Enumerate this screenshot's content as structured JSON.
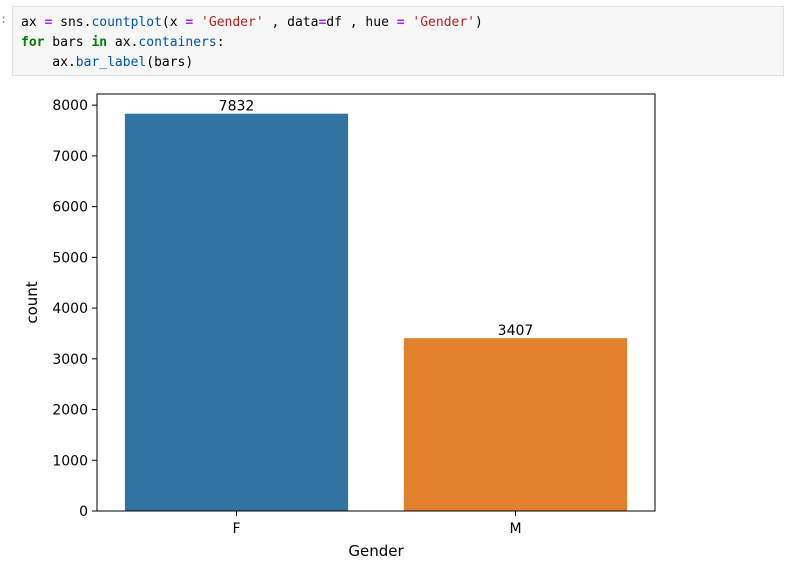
{
  "cell": {
    "prompt": ":",
    "code_lines": [
      [
        {
          "t": "plain",
          "v": "ax "
        },
        {
          "t": "op",
          "v": "="
        },
        {
          "t": "plain",
          "v": " sns."
        },
        {
          "t": "attr",
          "v": "countplot"
        },
        {
          "t": "plain",
          "v": "(x "
        },
        {
          "t": "op",
          "v": "="
        },
        {
          "t": "plain",
          "v": " "
        },
        {
          "t": "str",
          "v": "'Gender'"
        },
        {
          "t": "plain",
          "v": " , data"
        },
        {
          "t": "op",
          "v": "="
        },
        {
          "t": "plain",
          "v": "df , hue "
        },
        {
          "t": "op",
          "v": "="
        },
        {
          "t": "plain",
          "v": " "
        },
        {
          "t": "str",
          "v": "'Gender'"
        },
        {
          "t": "plain",
          "v": ")"
        }
      ],
      [
        {
          "t": "kw",
          "v": "for"
        },
        {
          "t": "plain",
          "v": " bars "
        },
        {
          "t": "kw",
          "v": "in"
        },
        {
          "t": "plain",
          "v": " ax."
        },
        {
          "t": "attr",
          "v": "containers"
        },
        {
          "t": "plain",
          "v": ":"
        }
      ],
      [
        {
          "t": "plain",
          "v": "    ax."
        },
        {
          "t": "attr",
          "v": "bar_label"
        },
        {
          "t": "plain",
          "v": "(bars)"
        }
      ]
    ]
  },
  "chart_data": {
    "type": "bar",
    "categories": [
      "F",
      "M"
    ],
    "values": [
      7832,
      3407
    ],
    "bar_labels": [
      "7832",
      "3407"
    ],
    "colors": [
      "#3274a1",
      "#e1812c"
    ],
    "xlabel": "Gender",
    "ylabel": "count",
    "ylim": [
      0,
      8220
    ],
    "yticks": [
      0,
      1000,
      2000,
      3000,
      4000,
      5000,
      6000,
      7000,
      8000
    ],
    "grid": false
  }
}
